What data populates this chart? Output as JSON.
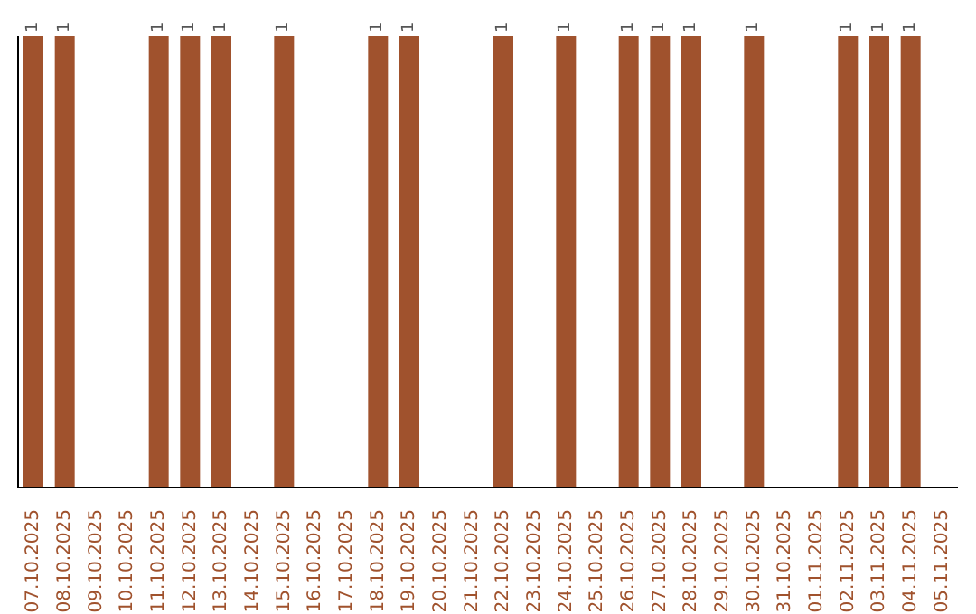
{
  "chart_data": {
    "type": "bar",
    "categories": [
      "07.10.2025",
      "08.10.2025",
      "09.10.2025",
      "10.10.2025",
      "11.10.2025",
      "12.10.2025",
      "13.10.2025",
      "14.10.2025",
      "15.10.2025",
      "16.10.2025",
      "17.10.2025",
      "18.10.2025",
      "19.10.2025",
      "20.10.2025",
      "21.10.2025",
      "22.10.2025",
      "23.10.2025",
      "24.10.2025",
      "25.10.2025",
      "26.10.2025",
      "27.10.2025",
      "28.10.2025",
      "29.10.2025",
      "30.10.2025",
      "31.10.2025",
      "01.11.2025",
      "02.11.2025",
      "03.11.2025",
      "04.11.2025",
      "05.11.2025"
    ],
    "values": [
      1,
      1,
      null,
      null,
      1,
      1,
      1,
      null,
      1,
      null,
      null,
      1,
      1,
      null,
      null,
      1,
      null,
      1,
      null,
      1,
      1,
      1,
      null,
      1,
      null,
      null,
      1,
      1,
      1,
      null
    ],
    "color": "#a0522d",
    "ylim": [
      0,
      1
    ],
    "data_labels": true,
    "tick_labels": "x"
  }
}
